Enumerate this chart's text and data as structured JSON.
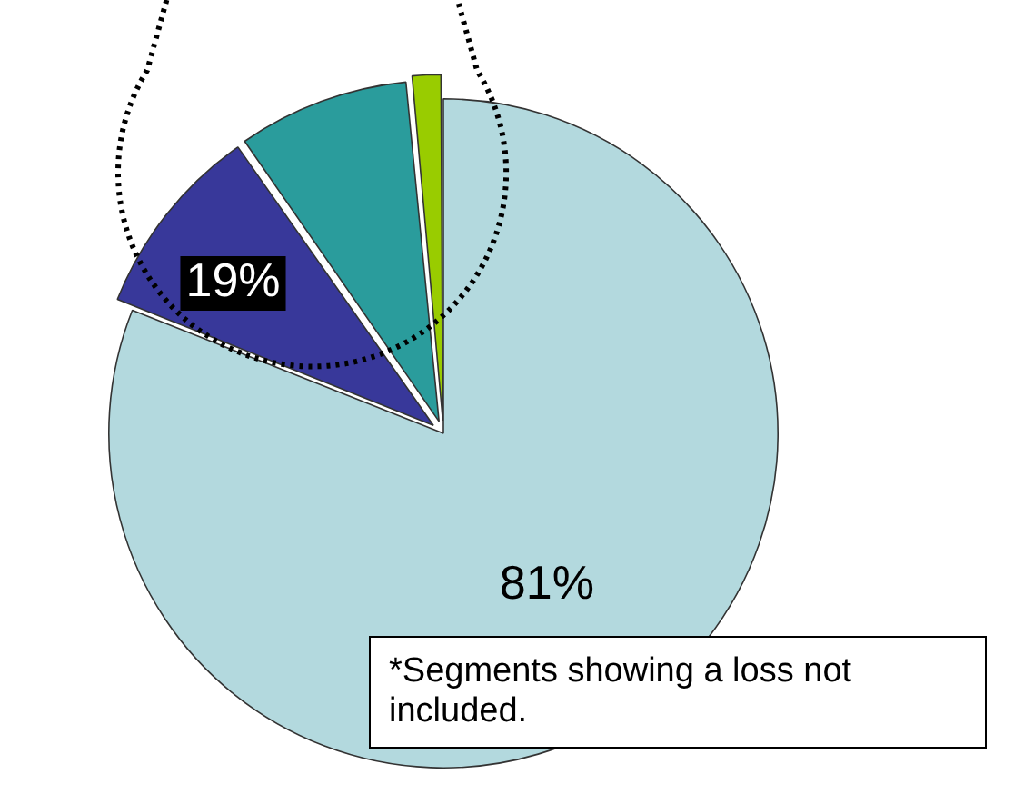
{
  "chart_data": {
    "type": "pie",
    "categories": [
      null,
      null,
      null,
      null
    ],
    "values": [
      81,
      9.3,
      8.2,
      1.5
    ],
    "colors": [
      "#b3d9de",
      "#38389a",
      "#2a9c9c",
      "#99cc00"
    ],
    "value_labels": [
      "81%",
      null,
      null,
      null
    ],
    "annotations": [
      "19%",
      "*Segments showing a loss not included."
    ]
  }
}
